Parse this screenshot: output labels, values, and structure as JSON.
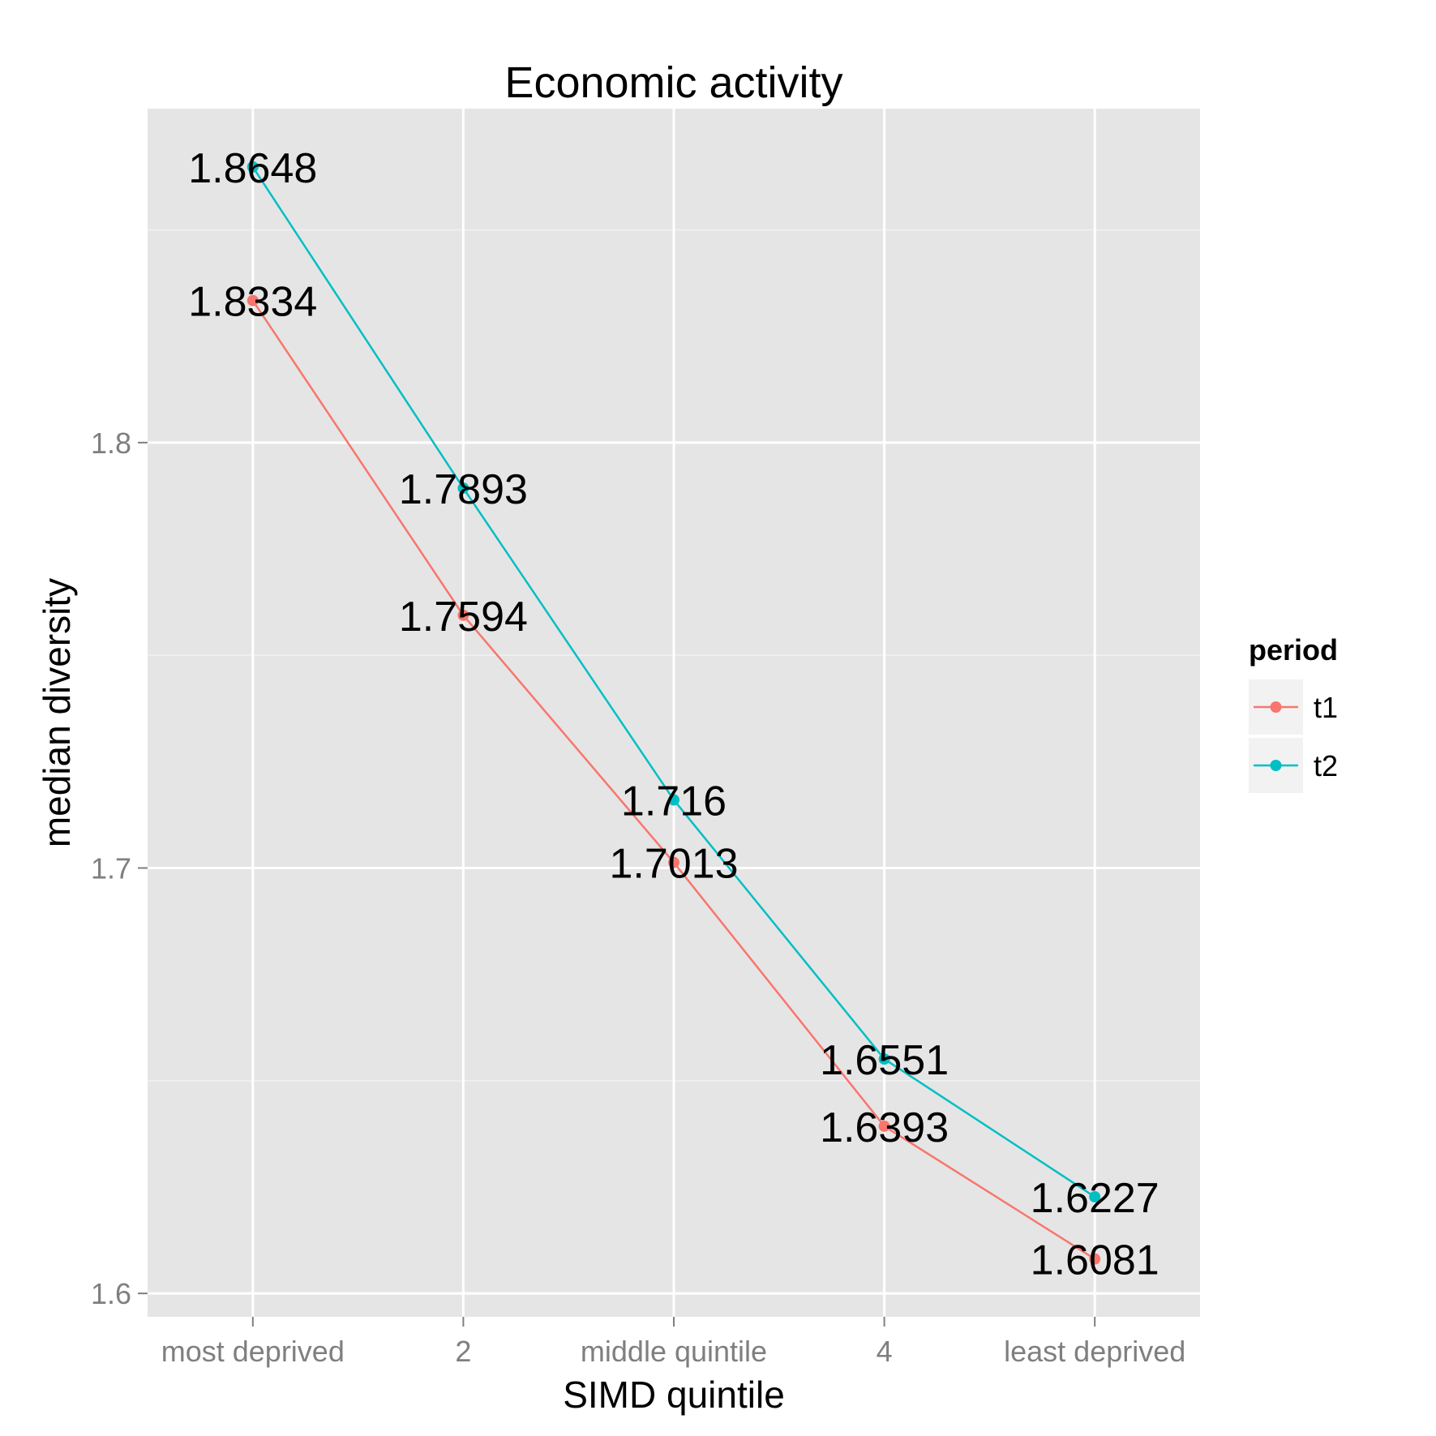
{
  "chart_data": {
    "type": "line",
    "title": "Economic activity",
    "xlabel": "SIMD quintile",
    "ylabel": "median diversity",
    "categories": [
      "most deprived",
      "2",
      "middle quintile",
      "4",
      "least deprived"
    ],
    "ylim": [
      1.5945,
      1.8785
    ],
    "yticks": [
      1.6,
      1.7,
      1.8
    ],
    "ytick_labels": [
      "1.6",
      "1.7",
      "1.8"
    ],
    "grid": true,
    "legend": {
      "title": "period",
      "position": "right"
    },
    "series": [
      {
        "name": "t1",
        "color": "#F8766D",
        "values": [
          1.8334,
          1.7594,
          1.7013,
          1.6393,
          1.6081
        ],
        "labels": [
          "1.8334",
          "1.7594",
          "1.7013",
          "1.6393",
          "1.6081"
        ]
      },
      {
        "name": "t2",
        "color": "#00BFC4",
        "values": [
          1.8648,
          1.7893,
          1.716,
          1.6551,
          1.6227
        ],
        "labels": [
          "1.8648",
          "1.7893",
          "1.716",
          "1.6551",
          "1.6227"
        ]
      }
    ]
  }
}
